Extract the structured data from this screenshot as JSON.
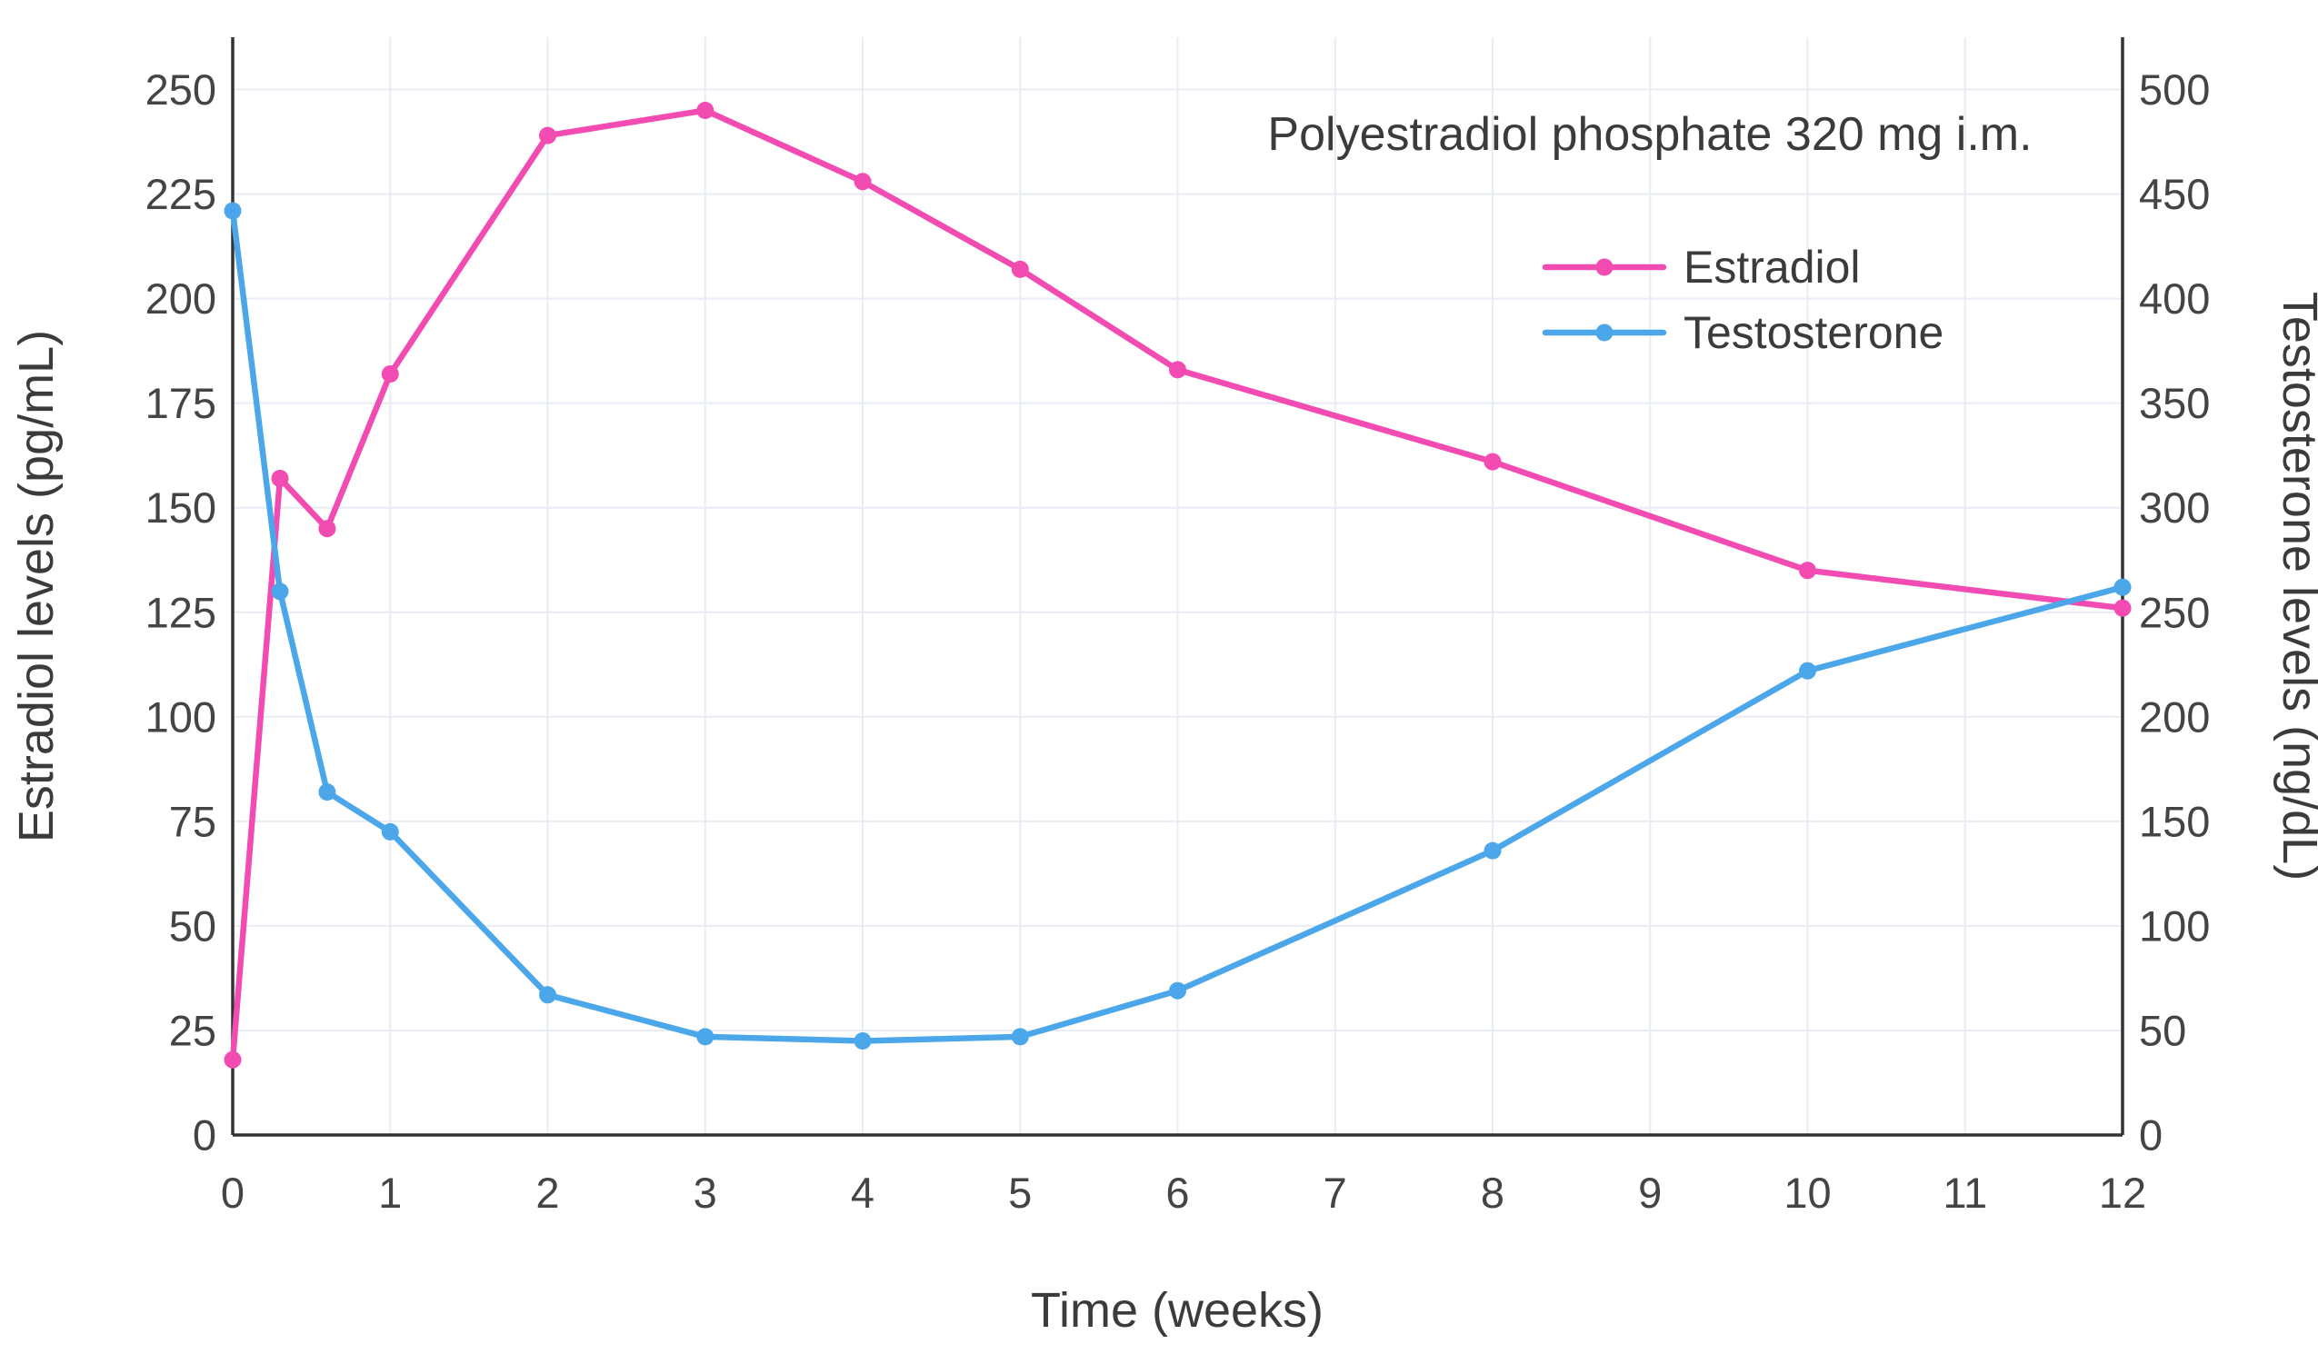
{
  "chart_data": {
    "type": "line",
    "annotation": "Polyestradiol phosphate 320 mg i.m.",
    "xlabel": "Time (weeks)",
    "ylabel_left": "Estradiol levels (pg/mL)",
    "ylabel_right": "Testosterone levels (ng/dL)",
    "x": [
      0,
      0.3,
      0.6,
      1,
      2,
      3,
      4,
      5,
      6,
      8,
      10,
      12
    ],
    "x_ticks": [
      0,
      1,
      2,
      3,
      4,
      5,
      6,
      7,
      8,
      9,
      10,
      11,
      12
    ],
    "left_axis": {
      "ticks": [
        0,
        25,
        50,
        75,
        100,
        125,
        150,
        175,
        200,
        225,
        250
      ],
      "min": 0,
      "max": 262.5
    },
    "right_axis": {
      "ticks": [
        0,
        50,
        100,
        150,
        200,
        250,
        300,
        350,
        400,
        450,
        500
      ],
      "min": 0,
      "max": 525
    },
    "grid": true,
    "legend_position": "top-right",
    "series": [
      {
        "name": "Estradiol",
        "axis": "left",
        "color": "#F24BB1",
        "values": [
          18,
          157,
          145,
          182,
          239,
          245,
          228,
          207,
          183,
          161,
          135,
          126
        ]
      },
      {
        "name": "Testosterone",
        "axis": "right",
        "color": "#4BA7E9",
        "values": [
          442,
          260,
          164,
          145,
          67,
          47,
          45,
          47,
          69,
          136,
          222,
          262
        ]
      }
    ],
    "colors": {
      "grid": "#E8ECF4",
      "axis": "#333333",
      "text": "#3B3B3B"
    }
  }
}
